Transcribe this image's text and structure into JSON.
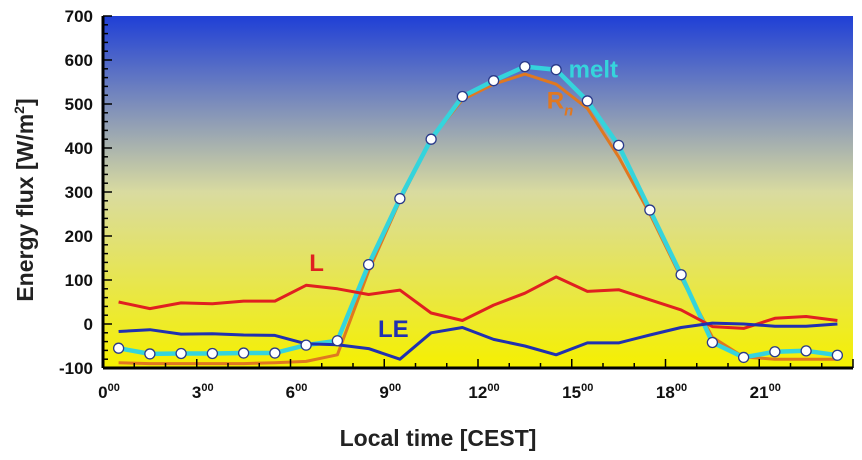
{
  "chart_data": {
    "type": "line",
    "xlabel": "Local time [CEST]",
    "ylabel_main": "Energy flux [W/m",
    "ylabel_sup": "2",
    "ylabel_end": "]",
    "xlim": [
      0,
      24
    ],
    "ylim": [
      -100,
      700
    ],
    "y_ticks": [
      -100,
      0,
      100,
      200,
      300,
      400,
      500,
      600,
      700
    ],
    "x_ticks": [
      {
        "value": 0,
        "hour": "0",
        "sup": "00"
      },
      {
        "value": 3,
        "hour": "3",
        "sup": "00"
      },
      {
        "value": 6,
        "hour": "6",
        "sup": "00"
      },
      {
        "value": 9,
        "hour": "9",
        "sup": "00"
      },
      {
        "value": 12,
        "hour": "12",
        "sup": "00"
      },
      {
        "value": 15,
        "hour": "15",
        "sup": "00"
      },
      {
        "value": 18,
        "hour": "18",
        "sup": "00"
      },
      {
        "value": 21,
        "hour": "21",
        "sup": "00"
      }
    ],
    "background_gradient": {
      "top": "#1f3fd6",
      "middle": "#d9dba0",
      "bottom": "#f5f000"
    },
    "series": [
      {
        "name": "Rn",
        "label_main": "R",
        "label_sub": "n",
        "color": "#e07820",
        "x": [
          0.5,
          1.5,
          2.5,
          3.5,
          4.5,
          5.5,
          6.5,
          7.5,
          8.5,
          9.5,
          10.5,
          11.5,
          12.5,
          13.5,
          14.5,
          15.5,
          16.5,
          17.5,
          18.5,
          19.5,
          20.5,
          21.5,
          22.5,
          23.5
        ],
        "y": [
          -88,
          -90,
          -90,
          -90,
          -90,
          -88,
          -85,
          -70,
          120,
          280,
          420,
          510,
          545,
          568,
          545,
          490,
          380,
          250,
          105,
          -30,
          -75,
          -80,
          -80,
          -80
        ]
      },
      {
        "name": "melt",
        "label_main": "melt",
        "color": "#35d4dc",
        "markers": true,
        "x": [
          0.5,
          1.5,
          2.5,
          3.5,
          4.5,
          5.5,
          6.5,
          7.5,
          8.5,
          9.5,
          10.5,
          11.5,
          12.5,
          13.5,
          14.5,
          15.5,
          16.5,
          17.5,
          18.5,
          19.5,
          20.5,
          21.5,
          22.5,
          23.5
        ],
        "y": [
          -55,
          -68,
          -67,
          -67,
          -66,
          -66,
          -48,
          -38,
          135,
          285,
          420,
          517,
          553,
          585,
          578,
          507,
          406,
          259,
          112,
          -42,
          -76,
          -63,
          -61,
          -71
        ]
      },
      {
        "name": "L",
        "label_main": "L",
        "color": "#e02020",
        "x": [
          0.5,
          1.5,
          2.5,
          3.5,
          4.5,
          5.5,
          6.5,
          7.5,
          8.5,
          9.5,
          10.5,
          11.5,
          12.5,
          13.5,
          14.5,
          15.5,
          16.5,
          17.5,
          18.5,
          19.5,
          20.5,
          21.5,
          22.5,
          23.5
        ],
        "y": [
          50,
          35,
          48,
          46,
          52,
          52,
          88,
          80,
          67,
          77,
          25,
          8,
          43,
          70,
          107,
          74,
          78,
          55,
          32,
          -6,
          -10,
          13,
          17,
          8
        ]
      },
      {
        "name": "LE",
        "label_main": "LE",
        "color": "#2030b0",
        "x": [
          0.5,
          1.5,
          2.5,
          3.5,
          4.5,
          5.5,
          6.5,
          7.5,
          8.5,
          9.5,
          10.5,
          11.5,
          12.5,
          13.5,
          14.5,
          15.5,
          16.5,
          17.5,
          18.5,
          19.5,
          20.5,
          21.5,
          22.5,
          23.5
        ],
        "y": [
          -17,
          -13,
          -23,
          -22,
          -25,
          -26,
          -45,
          -47,
          -56,
          -80,
          -20,
          -8,
          -35,
          -50,
          -70,
          -43,
          -43,
          -25,
          -8,
          2,
          0,
          -5,
          -5,
          0
        ]
      }
    ]
  }
}
